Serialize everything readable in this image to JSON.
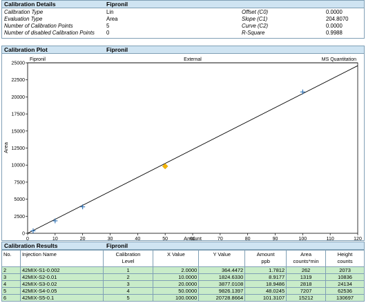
{
  "details": {
    "section_title": "Calibration Details",
    "compound": "Fipronil",
    "rows": [
      {
        "label": "Calibration Type",
        "value": "Lin",
        "label2": "Offset (C0)",
        "value2": "0.0000"
      },
      {
        "label": "Evaluation Type",
        "value": "Area",
        "label2": "Slope (C1)",
        "value2": "204.8070"
      },
      {
        "label": "Number of Calibration Points",
        "value": "5",
        "label2": "Curve (C2)",
        "value2": "0.0000"
      },
      {
        "label": "Number of disabled Calibration Points",
        "value": "0",
        "label2": "R-Square",
        "value2": "0.9988"
      }
    ]
  },
  "plot": {
    "section_title": "Calibration Plot",
    "compound": "Fipronil"
  },
  "chart_data": {
    "type": "scatter",
    "header_left": "Fipronil",
    "header_center": "External",
    "header_right": "MS Quantitation",
    "xlabel": "Amount",
    "ylabel": "Area",
    "xlim": [
      0,
      120
    ],
    "ylim": [
      0,
      25000
    ],
    "xticks": [
      0,
      10,
      20,
      30,
      40,
      50,
      60,
      70,
      80,
      90,
      100,
      110,
      120
    ],
    "yticks": [
      0,
      2500,
      5000,
      7500,
      10000,
      12500,
      15000,
      17500,
      20000,
      22500,
      25000
    ],
    "fit_line": {
      "slope": 204.807,
      "intercept": 0,
      "color": "#000000"
    },
    "series": [
      {
        "marker": "plus",
        "color": "#2a6fb5",
        "x": [
          2.0,
          10.0,
          20.0,
          100.0
        ],
        "y": [
          364.4472,
          1824.633,
          3877.0108,
          20728.8664
        ]
      },
      {
        "marker": "diamond",
        "color": "#f4b400",
        "x": [
          50.0
        ],
        "y": [
          9826.1397
        ]
      }
    ]
  },
  "results": {
    "section_title": "Calibration Results",
    "compound": "Fipronil",
    "columns": [
      {
        "label": "No.",
        "sub": ""
      },
      {
        "label": "Injection Name",
        "sub": ""
      },
      {
        "label": "Calibration",
        "sub": "Level"
      },
      {
        "label": "X Value",
        "sub": ""
      },
      {
        "label": "Y Value",
        "sub": ""
      },
      {
        "label": "Amount",
        "sub": "ppb"
      },
      {
        "label": "Area",
        "sub": "counts*min"
      },
      {
        "label": "Height",
        "sub": "counts"
      }
    ],
    "rows": [
      [
        "2",
        "42MIX-S1-0.002",
        "1",
        "2.0000",
        "364.4472",
        "1.7812",
        "262",
        "2073"
      ],
      [
        "3",
        "42MIX-S2-0.01",
        "2",
        "10.0000",
        "1824.6330",
        "8.9177",
        "1319",
        "10836"
      ],
      [
        "4",
        "42MIX-S3-0.02",
        "3",
        "20.0000",
        "3877.0108",
        "18.9486",
        "2818",
        "24134"
      ],
      [
        "5",
        "42MIX-S4-0.05",
        "4",
        "50.0000",
        "9826.1397",
        "48.0245",
        "7207",
        "62536"
      ],
      [
        "6",
        "42MIX-S5-0.1",
        "5",
        "100.0000",
        "20728.8664",
        "101.3107",
        "15212",
        "130697"
      ]
    ]
  }
}
